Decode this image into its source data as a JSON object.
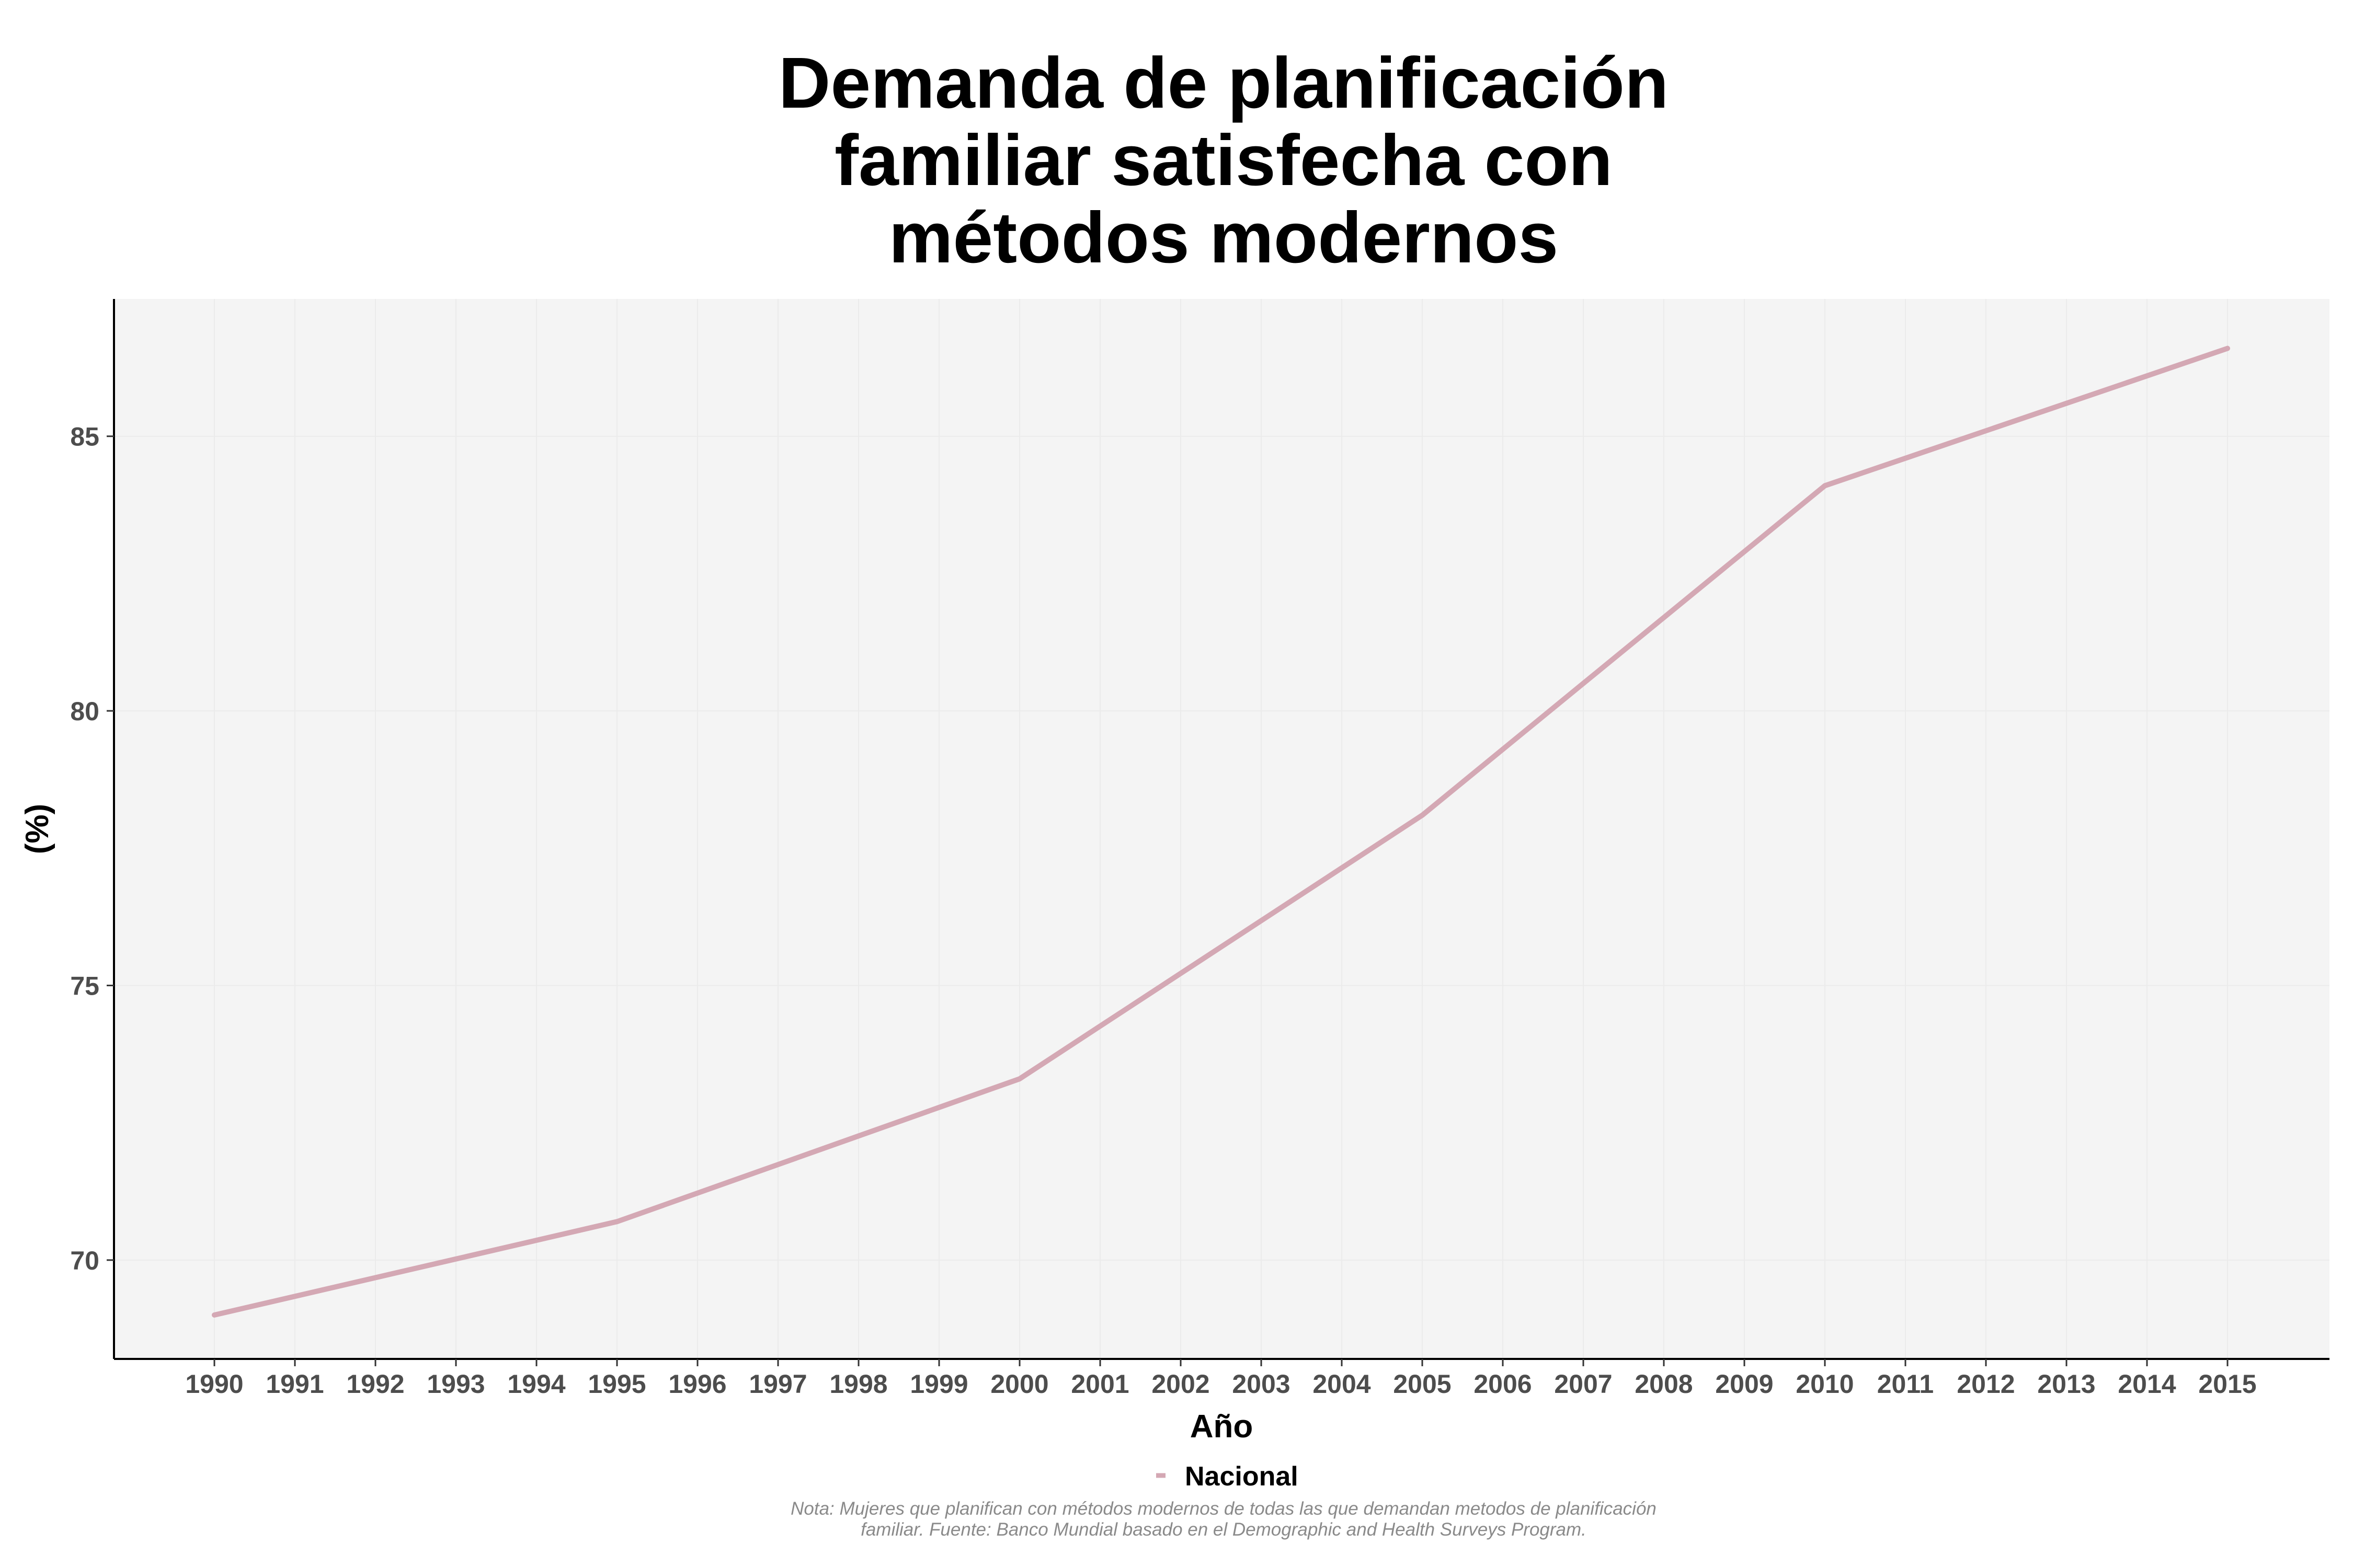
{
  "chart_data": {
    "type": "line",
    "title_lines": [
      "Demanda de planificación",
      "familiar satisfecha con",
      "métodos modernos"
    ],
    "xlabel": "Año",
    "ylabel": "(%)",
    "categories": [
      "1990",
      "1991",
      "1992",
      "1993",
      "1994",
      "1995",
      "1996",
      "1997",
      "1998",
      "1999",
      "2000",
      "2001",
      "2002",
      "2003",
      "2004",
      "2005",
      "2006",
      "2007",
      "2008",
      "2009",
      "2010",
      "2011",
      "2012",
      "2013",
      "2014",
      "2015"
    ],
    "series": [
      {
        "name": "Nacional",
        "color": "#d4a8b4",
        "values": [
          69.0,
          69.34,
          69.68,
          70.02,
          70.36,
          70.7,
          71.22,
          71.74,
          72.26,
          72.78,
          73.3,
          74.26,
          75.22,
          76.18,
          77.14,
          78.1,
          79.3,
          80.5,
          81.7,
          82.9,
          84.1,
          84.6,
          85.1,
          85.6,
          86.1,
          86.6
        ]
      }
    ],
    "ylim": [
      68.2,
      87.5
    ],
    "yticks": [
      70,
      75,
      80,
      85
    ],
    "grid": true,
    "legend_position": "bottom",
    "note_lines": [
      "Nota: Mujeres que planifican con métodos modernos de todas las que demandan metodos de planificación",
      "familiar. Fuente: Banco Mundial basado en el Demographic and Health Surveys Program."
    ]
  }
}
